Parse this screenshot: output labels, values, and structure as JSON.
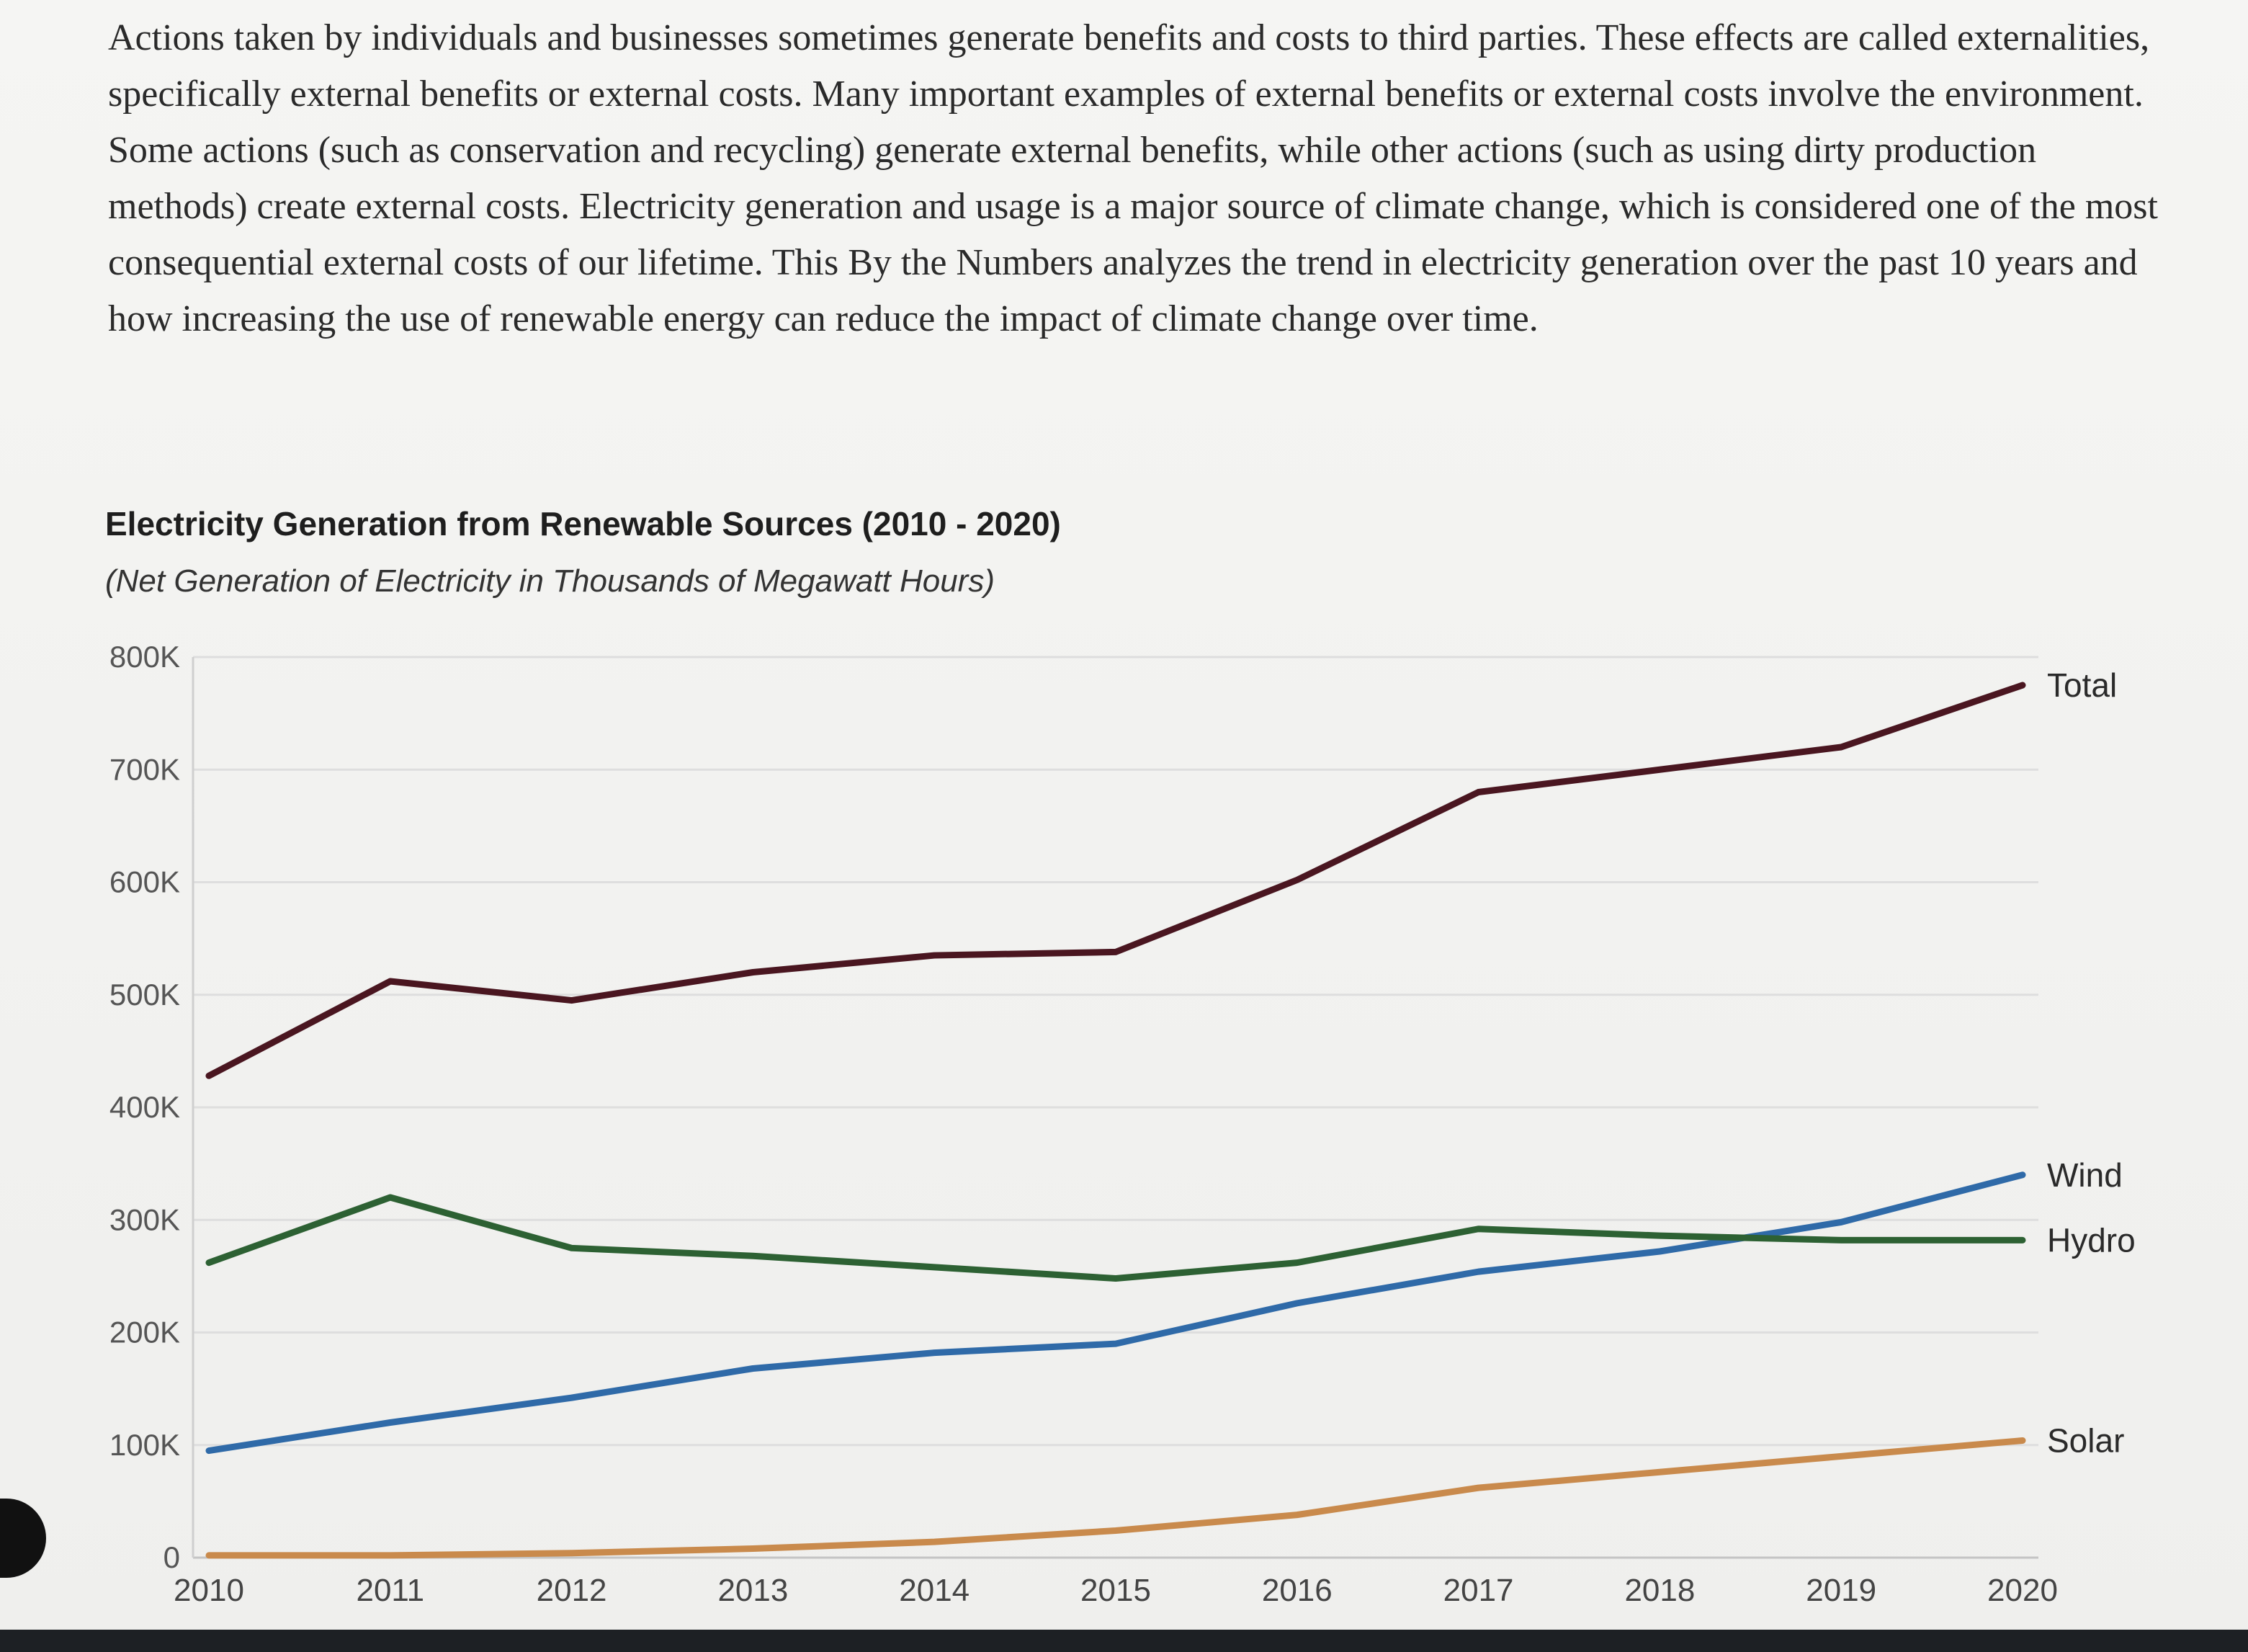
{
  "intro_text": "Actions taken by individuals and businesses sometimes generate benefits and costs to third parties. These effects are called externalities, specifically external benefits or external costs. Many important examples of external benefits or external costs involve the environment. Some actions (such as conservation and recycling) generate external benefits, while other actions (such as using dirty production methods) create external costs. Electricity generation and usage is a major source of climate change, which is considered one of the most consequential external costs of our lifetime. This By the Numbers analyzes the trend in electricity generation over the past 10 years and how increasing the use of renewable energy can reduce the impact of climate change over time.",
  "chart_data": {
    "type": "line",
    "title": "Electricity Generation from Renewable Sources (2010 - 2020)",
    "subtitle": "(Net Generation of Electricity in Thousands of Megawatt Hours)",
    "xlabel": "",
    "ylabel": "",
    "x": [
      "2010",
      "2011",
      "2012",
      "2013",
      "2014",
      "2015",
      "2016",
      "2017",
      "2018",
      "2019",
      "2020"
    ],
    "ylim": [
      0,
      800000
    ],
    "yticks": [
      {
        "value": 0,
        "label": "0"
      },
      {
        "value": 100000,
        "label": "100K"
      },
      {
        "value": 200000,
        "label": "200K"
      },
      {
        "value": 300000,
        "label": "300K"
      },
      {
        "value": 400000,
        "label": "400K"
      },
      {
        "value": 500000,
        "label": "500K"
      },
      {
        "value": 600000,
        "label": "600K"
      },
      {
        "value": 700000,
        "label": "700K"
      },
      {
        "value": 800000,
        "label": "800K"
      }
    ],
    "grid": true,
    "legend": "inline-right",
    "series": [
      {
        "name": "Total",
        "color": "#4a1620",
        "values": [
          428000,
          512000,
          495000,
          520000,
          535000,
          538000,
          602000,
          680000,
          700000,
          720000,
          775000
        ]
      },
      {
        "name": "Wind",
        "color": "#2f6aa8",
        "values": [
          95000,
          120000,
          142000,
          168000,
          182000,
          190000,
          226000,
          254000,
          272000,
          298000,
          340000
        ]
      },
      {
        "name": "Hydro",
        "color": "#2d6133",
        "values": [
          262000,
          320000,
          275000,
          268000,
          258000,
          248000,
          262000,
          292000,
          286000,
          282000,
          282000
        ]
      },
      {
        "name": "Solar",
        "color": "#c98a4c",
        "values": [
          2000,
          2000,
          4000,
          8000,
          14000,
          24000,
          38000,
          62000,
          76000,
          90000,
          104000
        ]
      }
    ]
  }
}
